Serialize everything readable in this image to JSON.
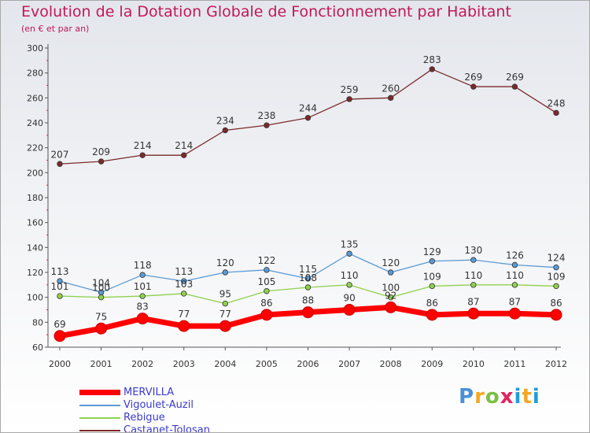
{
  "title": "Evolution de la Dotation Globale de Fonctionnement par Habitant",
  "subtitle": "(en € et par an)",
  "logo_text": "Proxiti",
  "chart_data": {
    "type": "line",
    "x": [
      2000,
      2001,
      2002,
      2003,
      2004,
      2005,
      2006,
      2007,
      2008,
      2009,
      2010,
      2011,
      2012
    ],
    "ylim": [
      60,
      300
    ],
    "yticks": [
      60,
      80,
      100,
      120,
      140,
      160,
      180,
      200,
      220,
      240,
      260,
      280,
      300
    ],
    "grid": false,
    "legend_position": "bottom-left",
    "series": [
      {
        "name": "Castanet-Tolosan",
        "color": "#7b2a2a",
        "values": [
          207,
          209,
          214,
          214,
          234,
          238,
          244,
          259,
          260,
          283,
          269,
          269,
          248
        ]
      },
      {
        "name": "Vigoulet-Auzil",
        "color": "#5b9bd5",
        "values": [
          113,
          104,
          118,
          113,
          120,
          122,
          115,
          135,
          120,
          129,
          130,
          126,
          124
        ]
      },
      {
        "name": "Rebigue",
        "color": "#8fd14f",
        "values": [
          101,
          100,
          101,
          103,
          95,
          105,
          108,
          110,
          100,
          109,
          110,
          110,
          109
        ]
      },
      {
        "name": "MERVILLA",
        "color": "#ff0000",
        "values": [
          69,
          75,
          83,
          77,
          77,
          86,
          88,
          90,
          92,
          86,
          87,
          87,
          86
        ]
      }
    ],
    "legend": [
      "MERVILLA",
      "Vigoulet-Auzil",
      "Rebigue",
      "Castanet-Tolosan"
    ]
  }
}
